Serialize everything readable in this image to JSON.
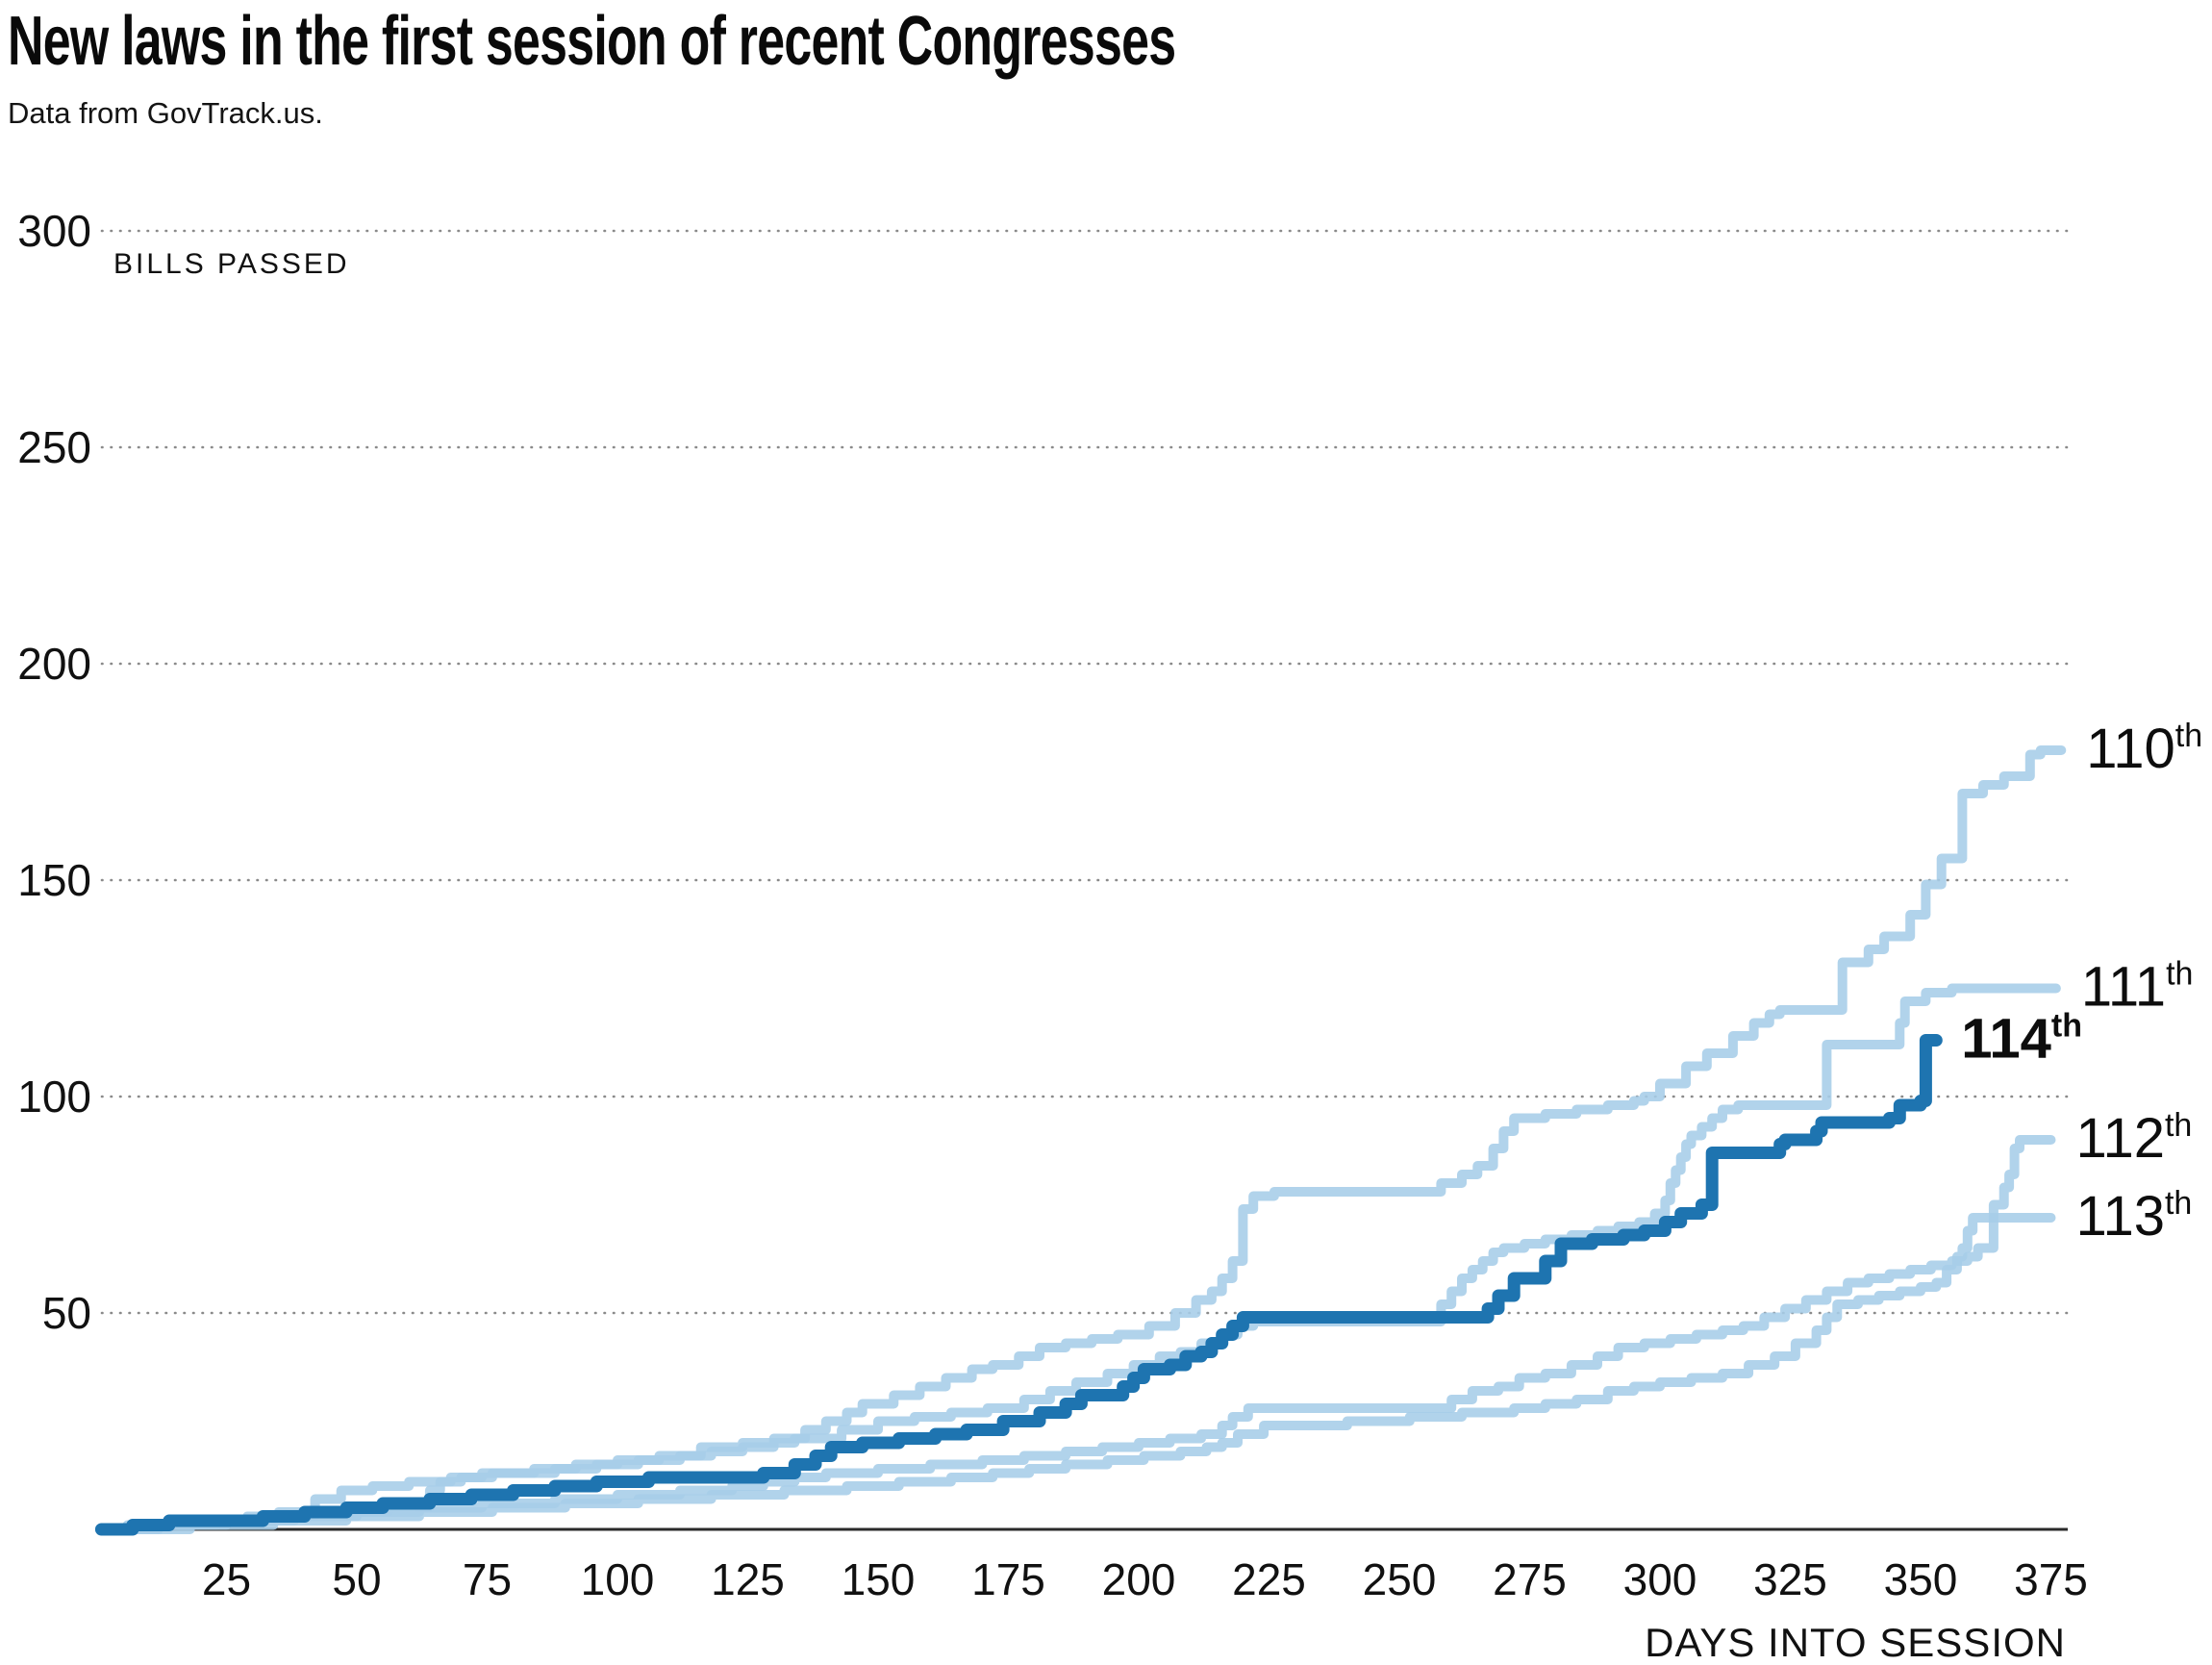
{
  "title": "New laws in the first session of recent Congresses",
  "subtitle": "Data from GovTrack.us.",
  "colors": {
    "light_blue": "#a6cde8",
    "dark_blue": "#1e74b0",
    "grid": "#8a8a8a",
    "axis": "#2b2b2b",
    "text": "#111111"
  },
  "chart_data": {
    "type": "line",
    "subtype": "cumulative step chart",
    "title": "New laws in the first session of recent Congresses",
    "source_note": "Data from GovTrack.us.",
    "xlabel": "DAYS INTO SESSION",
    "ylabel": "BILLS PASSED",
    "xlim": [
      0,
      380
    ],
    "ylim": [
      0,
      300
    ],
    "x_ticks": [
      25,
      50,
      75,
      100,
      125,
      150,
      175,
      200,
      225,
      250,
      275,
      300,
      325,
      350,
      375
    ],
    "y_ticks": [
      50,
      100,
      150,
      200,
      250,
      300
    ],
    "grid": "horizontal dotted lines, no vertical grid, bottom axis line only",
    "legend_position": "labels at right ends of lines",
    "series": [
      {
        "name": "110th Congress",
        "label": "110",
        "label_suffix": "th",
        "bold": false,
        "color": "light_blue",
        "end_day": 377,
        "final_value": 180,
        "steps": [
          [
            1,
            0
          ],
          [
            6,
            1
          ],
          [
            14,
            1
          ],
          [
            20,
            2
          ],
          [
            28,
            2
          ],
          [
            34,
            3
          ],
          [
            42,
            4
          ],
          [
            50,
            4
          ],
          [
            56,
            5
          ],
          [
            62,
            5
          ],
          [
            64,
            9
          ],
          [
            66,
            11
          ],
          [
            70,
            12
          ],
          [
            74,
            13
          ],
          [
            82,
            13
          ],
          [
            88,
            14
          ],
          [
            96,
            15
          ],
          [
            104,
            16
          ],
          [
            112,
            17
          ],
          [
            118,
            18
          ],
          [
            124,
            19
          ],
          [
            130,
            21
          ],
          [
            136,
            23
          ],
          [
            140,
            25
          ],
          [
            144,
            27
          ],
          [
            147,
            29
          ],
          [
            153,
            31
          ],
          [
            158,
            33
          ],
          [
            163,
            35
          ],
          [
            168,
            37
          ],
          [
            172,
            38
          ],
          [
            177,
            40
          ],
          [
            181,
            42
          ],
          [
            186,
            43
          ],
          [
            191,
            44
          ],
          [
            196,
            45
          ],
          [
            202,
            47
          ],
          [
            207,
            50
          ],
          [
            211,
            53
          ],
          [
            214,
            55
          ],
          [
            216,
            58
          ],
          [
            218,
            62
          ],
          [
            220,
            74
          ],
          [
            222,
            77
          ],
          [
            226,
            78
          ],
          [
            255,
            78
          ],
          [
            258,
            80
          ],
          [
            262,
            82
          ],
          [
            265,
            84
          ],
          [
            268,
            88
          ],
          [
            270,
            92
          ],
          [
            272,
            95
          ],
          [
            278,
            96
          ],
          [
            284,
            97
          ],
          [
            290,
            98
          ],
          [
            295,
            99
          ],
          [
            297,
            100
          ],
          [
            300,
            103
          ],
          [
            305,
            107
          ],
          [
            309,
            110
          ],
          [
            314,
            114
          ],
          [
            318,
            117
          ],
          [
            321,
            119
          ],
          [
            323,
            120
          ],
          [
            334,
            120
          ],
          [
            335,
            131
          ],
          [
            340,
            134
          ],
          [
            343,
            137
          ],
          [
            348,
            142
          ],
          [
            351,
            149
          ],
          [
            354,
            155
          ],
          [
            358,
            170
          ],
          [
            362,
            172
          ],
          [
            366,
            174
          ],
          [
            371,
            179
          ],
          [
            373,
            180
          ]
        ]
      },
      {
        "name": "111th Congress",
        "label": "111",
        "label_suffix": "th",
        "bold": false,
        "color": "light_blue",
        "end_day": 376,
        "final_value": 125,
        "steps": [
          [
            1,
            0
          ],
          [
            8,
            1
          ],
          [
            16,
            1
          ],
          [
            23,
            2
          ],
          [
            29,
            3
          ],
          [
            35,
            4
          ],
          [
            42,
            7
          ],
          [
            47,
            9
          ],
          [
            53,
            10
          ],
          [
            60,
            11
          ],
          [
            68,
            12
          ],
          [
            76,
            13
          ],
          [
            84,
            14
          ],
          [
            92,
            15
          ],
          [
            100,
            16
          ],
          [
            108,
            17
          ],
          [
            116,
            19
          ],
          [
            124,
            20
          ],
          [
            134,
            21
          ],
          [
            143,
            23
          ],
          [
            150,
            25
          ],
          [
            157,
            26
          ],
          [
            164,
            27
          ],
          [
            171,
            28
          ],
          [
            178,
            30
          ],
          [
            183,
            32
          ],
          [
            188,
            34
          ],
          [
            194,
            36
          ],
          [
            199,
            38
          ],
          [
            204,
            40
          ],
          [
            208,
            41
          ],
          [
            212,
            43
          ],
          [
            216,
            45
          ],
          [
            219,
            47
          ],
          [
            222,
            48
          ],
          [
            256,
            48
          ],
          [
            258,
            52
          ],
          [
            260,
            55
          ],
          [
            262,
            58
          ],
          [
            264,
            60
          ],
          [
            266,
            62
          ],
          [
            268,
            64
          ],
          [
            270,
            65
          ],
          [
            274,
            66
          ],
          [
            278,
            67
          ],
          [
            283,
            68
          ],
          [
            288,
            69
          ],
          [
            292,
            70
          ],
          [
            296,
            71
          ],
          [
            299,
            73
          ],
          [
            301,
            76
          ],
          [
            302,
            80
          ],
          [
            303,
            83
          ],
          [
            304,
            86
          ],
          [
            305,
            89
          ],
          [
            306,
            91
          ],
          [
            308,
            93
          ],
          [
            310,
            95
          ],
          [
            312,
            97
          ],
          [
            315,
            98
          ],
          [
            331,
            98
          ],
          [
            332,
            112
          ],
          [
            345,
            112
          ],
          [
            346,
            117
          ],
          [
            347,
            122
          ],
          [
            351,
            124
          ],
          [
            356,
            125
          ]
        ]
      },
      {
        "name": "112th Congress",
        "label": "112",
        "label_suffix": "th",
        "bold": false,
        "color": "light_blue",
        "end_day": 375,
        "final_value": 90,
        "steps": [
          [
            1,
            0
          ],
          [
            12,
            1
          ],
          [
            25,
            2
          ],
          [
            38,
            3
          ],
          [
            50,
            4
          ],
          [
            62,
            5
          ],
          [
            74,
            6
          ],
          [
            88,
            7
          ],
          [
            100,
            8
          ],
          [
            112,
            9
          ],
          [
            122,
            10
          ],
          [
            128,
            11
          ],
          [
            134,
            12
          ],
          [
            140,
            13
          ],
          [
            150,
            14
          ],
          [
            160,
            15
          ],
          [
            170,
            16
          ],
          [
            178,
            17
          ],
          [
            186,
            18
          ],
          [
            193,
            19
          ],
          [
            200,
            20
          ],
          [
            206,
            21
          ],
          [
            212,
            22
          ],
          [
            216,
            24
          ],
          [
            218,
            26
          ],
          [
            221,
            28
          ],
          [
            256,
            28
          ],
          [
            260,
            30
          ],
          [
            264,
            32
          ],
          [
            269,
            33
          ],
          [
            273,
            35
          ],
          [
            278,
            36
          ],
          [
            283,
            38
          ],
          [
            288,
            40
          ],
          [
            292,
            42
          ],
          [
            297,
            43
          ],
          [
            302,
            44
          ],
          [
            307,
            45
          ],
          [
            312,
            46
          ],
          [
            316,
            47
          ],
          [
            320,
            49
          ],
          [
            324,
            51
          ],
          [
            328,
            53
          ],
          [
            332,
            55
          ],
          [
            336,
            57
          ],
          [
            340,
            58
          ],
          [
            344,
            59
          ],
          [
            348,
            60
          ],
          [
            352,
            61
          ],
          [
            356,
            62
          ],
          [
            359,
            63
          ],
          [
            361,
            65
          ],
          [
            364,
            75
          ],
          [
            366,
            79
          ],
          [
            367,
            82
          ],
          [
            368,
            88
          ],
          [
            369,
            90
          ]
        ]
      },
      {
        "name": "113th Congress",
        "label": "113",
        "label_suffix": "th",
        "bold": false,
        "color": "light_blue",
        "end_day": 375,
        "final_value": 72,
        "steps": [
          [
            1,
            0
          ],
          [
            18,
            1
          ],
          [
            34,
            2
          ],
          [
            48,
            3
          ],
          [
            62,
            4
          ],
          [
            76,
            5
          ],
          [
            90,
            6
          ],
          [
            104,
            7
          ],
          [
            118,
            8
          ],
          [
            132,
            9
          ],
          [
            144,
            10
          ],
          [
            154,
            11
          ],
          [
            164,
            12
          ],
          [
            172,
            13
          ],
          [
            179,
            14
          ],
          [
            186,
            15
          ],
          [
            194,
            16
          ],
          [
            201,
            17
          ],
          [
            208,
            18
          ],
          [
            213,
            19
          ],
          [
            216,
            20
          ],
          [
            219,
            22
          ],
          [
            224,
            24
          ],
          [
            240,
            25
          ],
          [
            252,
            26
          ],
          [
            262,
            27
          ],
          [
            272,
            28
          ],
          [
            278,
            29
          ],
          [
            284,
            30
          ],
          [
            290,
            32
          ],
          [
            295,
            33
          ],
          [
            300,
            34
          ],
          [
            306,
            35
          ],
          [
            312,
            36
          ],
          [
            317,
            38
          ],
          [
            322,
            40
          ],
          [
            326,
            43
          ],
          [
            330,
            46
          ],
          [
            332,
            49
          ],
          [
            334,
            52
          ],
          [
            338,
            53
          ],
          [
            342,
            54
          ],
          [
            346,
            55
          ],
          [
            350,
            56
          ],
          [
            353,
            57
          ],
          [
            355,
            60
          ],
          [
            357,
            63
          ],
          [
            358,
            65
          ],
          [
            359,
            69
          ],
          [
            360,
            72
          ]
        ]
      },
      {
        "name": "114th Congress",
        "label": "114",
        "label_suffix": "th",
        "bold": true,
        "color": "dark_blue",
        "end_day": 353,
        "final_value": 113,
        "steps": [
          [
            1,
            0
          ],
          [
            7,
            1
          ],
          [
            14,
            2
          ],
          [
            24,
            2
          ],
          [
            32,
            3
          ],
          [
            40,
            4
          ],
          [
            48,
            5
          ],
          [
            55,
            6
          ],
          [
            64,
            7
          ],
          [
            72,
            8
          ],
          [
            80,
            9
          ],
          [
            88,
            10
          ],
          [
            96,
            11
          ],
          [
            106,
            12
          ],
          [
            118,
            12
          ],
          [
            128,
            13
          ],
          [
            134,
            15
          ],
          [
            138,
            17
          ],
          [
            141,
            19
          ],
          [
            147,
            20
          ],
          [
            154,
            21
          ],
          [
            161,
            22
          ],
          [
            167,
            23
          ],
          [
            174,
            25
          ],
          [
            181,
            27
          ],
          [
            186,
            29
          ],
          [
            189,
            31
          ],
          [
            197,
            33
          ],
          [
            199,
            35
          ],
          [
            201,
            37
          ],
          [
            206,
            38
          ],
          [
            209,
            40
          ],
          [
            212,
            41
          ],
          [
            214,
            43
          ],
          [
            216,
            45
          ],
          [
            218,
            47
          ],
          [
            220,
            49
          ],
          [
            263,
            49
          ],
          [
            267,
            51
          ],
          [
            269,
            54
          ],
          [
            272,
            58
          ],
          [
            278,
            62
          ],
          [
            281,
            66
          ],
          [
            287,
            67
          ],
          [
            293,
            68
          ],
          [
            297,
            69
          ],
          [
            301,
            71
          ],
          [
            304,
            73
          ],
          [
            308,
            75
          ],
          [
            310,
            87
          ],
          [
            323,
            89
          ],
          [
            324,
            90
          ],
          [
            330,
            92
          ],
          [
            331,
            94
          ],
          [
            344,
            95
          ],
          [
            346,
            98
          ],
          [
            350,
            99
          ],
          [
            351,
            113
          ]
        ]
      }
    ]
  }
}
